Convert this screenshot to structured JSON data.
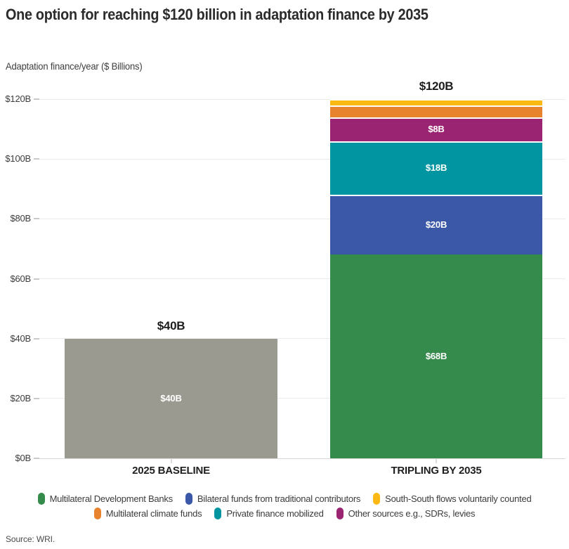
{
  "title": "One option for reaching $120 billion in adaptation finance by 2035",
  "subtitle": "Adaptation finance/year ($ Billions)",
  "source": "Source: WRI.",
  "chart_data": {
    "type": "bar",
    "stacked": true,
    "title": "One option for reaching $120 billion in adaptation finance by 2035",
    "ylabel": "Adaptation finance/year ($ Billions)",
    "xlabel": "",
    "ylim": [
      0,
      120
    ],
    "grid": true,
    "legend_position": "bottom",
    "yticks": [
      0,
      20,
      40,
      60,
      80,
      100,
      120
    ],
    "ytick_labels": [
      "$0B",
      "$20B",
      "$40B",
      "$60B",
      "$80B",
      "$100B",
      "$120B"
    ],
    "categories": [
      "2025 BASELINE",
      "TRIPLING BY 2035"
    ],
    "bars": [
      {
        "category": "2025 BASELINE",
        "total": 40,
        "total_label": "$40B",
        "segments": [
          {
            "name": "2025 baseline",
            "value": 40,
            "label": "$40B",
            "color": "#9B9A90"
          }
        ]
      },
      {
        "category": "TRIPLING BY 2035",
        "total": 120,
        "total_label": "$120B",
        "segments": [
          {
            "name": "Multilateral Development Banks",
            "value": 68,
            "label": "$68B",
            "color": "#348B4B"
          },
          {
            "name": "Bilateral funds from traditional contributors",
            "value": 20,
            "label": "$20B",
            "color": "#3B58A8"
          },
          {
            "name": "Private finance mobilized",
            "value": 18,
            "label": "$18B",
            "color": "#0095A1"
          },
          {
            "name": "Other sources e.g., SDRs, levies",
            "value": 8,
            "label": "$8B",
            "color": "#9B2472"
          },
          {
            "name": "Multilateral climate funds",
            "value": 4,
            "label": "",
            "color": "#E8832D"
          },
          {
            "name": "South-South flows voluntarily counted",
            "value": 2,
            "label": "",
            "color": "#FCB813"
          }
        ]
      }
    ],
    "legend": {
      "rows": [
        [
          "Multilateral Development Banks",
          "Bilateral funds from traditional contributors",
          "South-South flows voluntarily counted"
        ],
        [
          "Multilateral climate funds",
          "Private finance mobilized",
          "Other sources e.g., SDRs, levies"
        ]
      ]
    }
  }
}
